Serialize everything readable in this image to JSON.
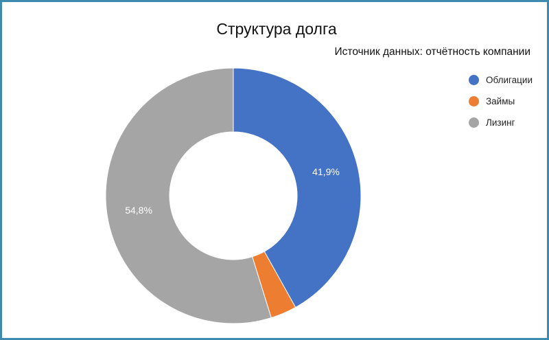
{
  "chart_data": {
    "type": "pie",
    "title": "Структура долга",
    "subtitle": "Источник данных: отчётность компании",
    "categories": [
      "Облигации",
      "Займы",
      "Лизинг"
    ],
    "values": [
      41.9,
      3.3,
      54.8
    ],
    "data_labels": [
      "41,9%",
      "",
      "54,8%"
    ],
    "colors": [
      "#4472c4",
      "#ed7d31",
      "#a5a5a5"
    ],
    "legend_position": "right",
    "donut": true
  }
}
